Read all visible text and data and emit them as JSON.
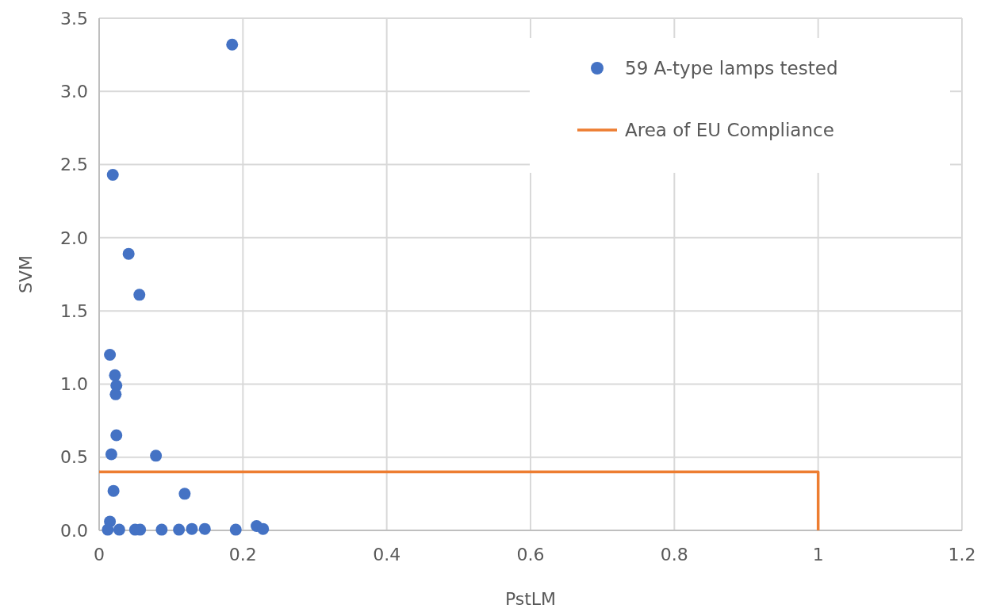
{
  "chart_data": {
    "type": "scatter",
    "xlabel": "PstLM",
    "ylabel": "SVM",
    "xlim": [
      0,
      1.2
    ],
    "ylim": [
      0,
      3.5
    ],
    "xticks": [
      0,
      0.2,
      0.4,
      0.6,
      0.8,
      1,
      1.2
    ],
    "yticks": [
      {
        "value": 0,
        "label": "0.0"
      },
      {
        "value": 0.5,
        "label": "0.5"
      },
      {
        "value": 1,
        "label": "1.0"
      },
      {
        "value": 1.5,
        "label": "1.5"
      },
      {
        "value": 2,
        "label": "2.0"
      },
      {
        "value": 2.5,
        "label": "2.5"
      },
      {
        "value": 3,
        "label": "3.0"
      },
      {
        "value": 3.5,
        "label": "3.5"
      }
    ],
    "grid": true,
    "legend": "top right",
    "series": [
      {
        "name": "59 A-type lamps tested",
        "color": "#4472c4",
        "marker": "circle",
        "x": [
          0.185,
          0.019,
          0.041,
          0.056,
          0.015,
          0.022,
          0.024,
          0.023,
          0.024,
          0.017,
          0.079,
          0.02,
          0.119,
          0.015,
          0.012,
          0.028,
          0.05,
          0.057,
          0.087,
          0.111,
          0.129,
          0.147,
          0.19,
          0.219,
          0.228
        ],
        "values": [
          3.32,
          2.43,
          1.89,
          1.61,
          1.2,
          1.06,
          0.99,
          0.93,
          0.65,
          0.52,
          0.51,
          0.27,
          0.25,
          0.06,
          0.005,
          0.005,
          0.005,
          0.005,
          0.005,
          0.005,
          0.01,
          0.01,
          0.005,
          0.03,
          0.01
        ]
      },
      {
        "name": "Area of EU Compliance",
        "type": "line",
        "color": "#ed7d31",
        "marker": "none",
        "line_style": "solid",
        "x": [
          0,
          1,
          1
        ],
        "values": [
          0.4,
          0.4,
          0
        ]
      }
    ]
  }
}
